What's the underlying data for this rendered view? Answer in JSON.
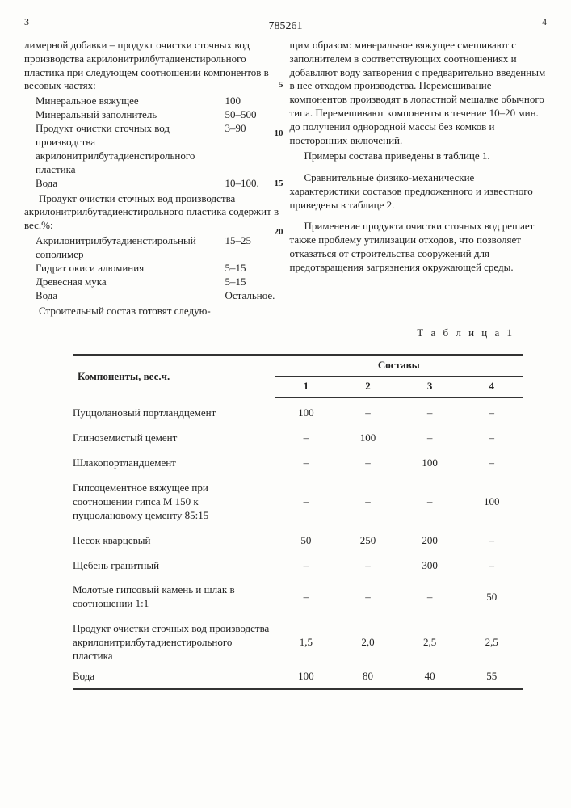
{
  "header": {
    "pageLeft": "3",
    "docnum": "785261",
    "pageRight": "4"
  },
  "left": {
    "intro": "лимерной добавки – продукт очистки сточных вод производства акрилонитрилбутадиенстирольного пластика при следующем соотношении компонентов в весовых частях:",
    "specs": [
      {
        "label": "Минеральное вяжущее",
        "val": "100"
      },
      {
        "label": "Минеральный заполнитель",
        "val": "50–500"
      },
      {
        "label": "Продукт очистки сточных вод производства акрилонитрилбутадиенстирольного пластика",
        "val": "3–90"
      },
      {
        "label": "Вода",
        "val": "10–100."
      }
    ],
    "mid": "Продукт очистки сточных вод производства акрилонитрилбутадиенстирольного пластика содержит в вес.%:",
    "specs2": [
      {
        "label": "Акрилонитрилбутадиенстирольный сополимер",
        "val": "15–25"
      },
      {
        "label": "Гидрат окиси алюминия",
        "val": "5–15"
      },
      {
        "label": "Древесная мука",
        "val": "5–15"
      },
      {
        "label": "Вода",
        "val": "Остальное."
      }
    ],
    "tail": "Строительный состав готовят следую-"
  },
  "right": {
    "p1": "щим образом: минеральное вяжущее смешивают с заполнителем в соответствующих соотношениях и добавляют воду затворения с предварительно введенным в нее отходом производства. Перемешивание компонентов производят в лопастной мешалке обычного типа. Перемешивают компоненты в течение 10–20 мин. до получения однородной массы без комков и посторонних включений.",
    "p2": "Примеры состава приведены в таблице 1.",
    "p3": "Сравнительные физико-механические характеристики составов предложенного и известного приведены в таблице 2.",
    "p4": "Применение продукта очистки сточных вод решает также проблему утилизации отходов, что позволяет отказаться от строительства сооружений для предотвращения загрязнения окружающей среды."
  },
  "linemarks": {
    "l5": "5",
    "l10": "10",
    "l15": "15",
    "l20": "20"
  },
  "table": {
    "title": "Т а б л и ц а   1",
    "head1": "Компоненты, вес.ч.",
    "head2": "Составы",
    "cols": [
      "1",
      "2",
      "3",
      "4"
    ],
    "rows": [
      {
        "name": "Пуццолановый портландцемент",
        "v": [
          "100",
          "–",
          "–",
          "–"
        ]
      },
      {
        "name": "Глиноземистый цемент",
        "v": [
          "–",
          "100",
          "–",
          "–"
        ]
      },
      {
        "name": "Шлакопортландцемент",
        "v": [
          "–",
          "–",
          "100",
          "–"
        ]
      },
      {
        "name": "Гипсоцементное вяжущее при соотношении гипса М 150 к пуццолановому цементу 85:15",
        "v": [
          "–",
          "–",
          "–",
          "100"
        ]
      },
      {
        "name": "Песок кварцевый",
        "v": [
          "50",
          "250",
          "200",
          "–"
        ]
      },
      {
        "name": "Щебень гранитный",
        "v": [
          "–",
          "–",
          "300",
          "–"
        ]
      },
      {
        "name": "Молотые гипсовый камень и шлак в соотношении 1:1",
        "v": [
          "–",
          "–",
          "–",
          "50"
        ]
      },
      {
        "name": "Продукт очистки сточных вод производства акрилонитрилбутадиенстирольного пластика",
        "v": [
          "1,5",
          "2,0",
          "2,5",
          "2,5"
        ]
      },
      {
        "name": "Вода",
        "v": [
          "100",
          "80",
          "40",
          "55"
        ]
      }
    ]
  }
}
